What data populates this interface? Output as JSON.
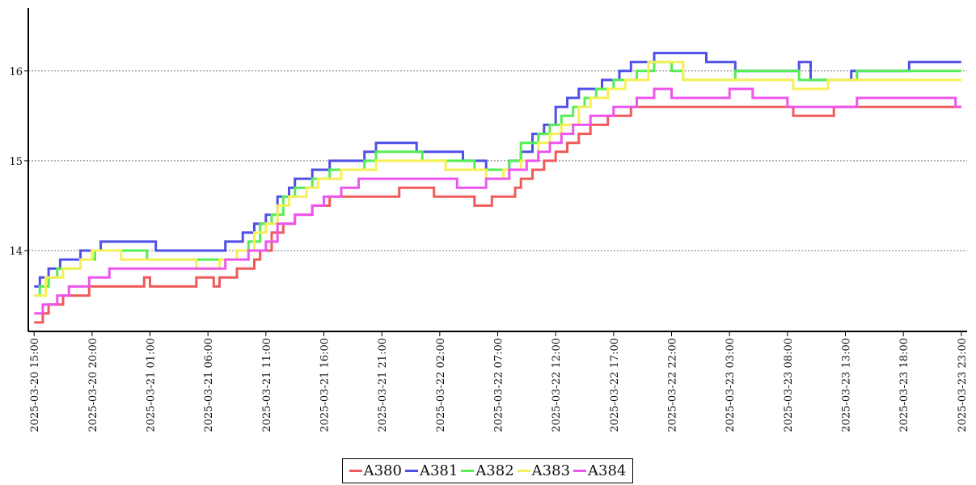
{
  "chart_data": {
    "type": "line",
    "step": true,
    "x_type": "datetime",
    "x_range": [
      "2025-03-20 14:30",
      "2025-03-23 23:30"
    ],
    "ylim": [
      13.1,
      16.7
    ],
    "y_ticks": [
      14,
      15,
      16
    ],
    "y_tick_labels": [
      "14",
      "15",
      "16"
    ],
    "x_ticks": [
      "2025-03-20 15:00",
      "2025-03-20 20:00",
      "2025-03-21 01:00",
      "2025-03-21 06:00",
      "2025-03-21 11:00",
      "2025-03-21 16:00",
      "2025-03-21 21:00",
      "2025-03-22 02:00",
      "2025-03-22 07:00",
      "2025-03-22 12:00",
      "2025-03-22 17:00",
      "2025-03-22 22:00",
      "2025-03-23 03:00",
      "2025-03-23 08:00",
      "2025-03-23 13:00",
      "2025-03-23 18:00",
      "2025-03-23 23:00"
    ],
    "x_tick_labels": [
      "2025-03-20  15:00",
      "2025-03-20  20:00",
      "2025-03-21  01:00",
      "2025-03-21  06:00",
      "2025-03-21  11:00",
      "2025-03-21  16:00",
      "2025-03-21  21:00",
      "2025-03-22  02:00",
      "2025-03-22  07:00",
      "2025-03-22  12:00",
      "2025-03-22  17:00",
      "2025-03-22  22:00",
      "2025-03-23  03:00",
      "2025-03-23  08:00",
      "2025-03-23  13:00",
      "2025-03-23  18:00",
      "2025-03-23  23:00"
    ],
    "grid": "horizontal dotted",
    "legend_position": "bottom-center",
    "series": [
      {
        "name": "A380",
        "color": "#f05a5a",
        "points": [
          [
            "2025-03-20 15:00",
            13.2
          ],
          [
            "2025-03-20 15:45",
            13.3
          ],
          [
            "2025-03-20 16:15",
            13.4
          ],
          [
            "2025-03-20 17:30",
            13.5
          ],
          [
            "2025-03-20 19:45",
            13.6
          ],
          [
            "2025-03-21 00:00",
            13.6
          ],
          [
            "2025-03-21 00:30",
            13.7
          ],
          [
            "2025-03-21 01:00",
            13.6
          ],
          [
            "2025-03-21 05:00",
            13.7
          ],
          [
            "2025-03-21 06:30",
            13.6
          ],
          [
            "2025-03-21 07:00",
            13.7
          ],
          [
            "2025-03-21 08:30",
            13.8
          ],
          [
            "2025-03-21 10:00",
            13.9
          ],
          [
            "2025-03-21 10:30",
            14.0
          ],
          [
            "2025-03-21 11:30",
            14.2
          ],
          [
            "2025-03-21 12:30",
            14.3
          ],
          [
            "2025-03-21 13:30",
            14.4
          ],
          [
            "2025-03-21 15:00",
            14.5
          ],
          [
            "2025-03-21 16:30",
            14.6
          ],
          [
            "2025-03-21 22:00",
            14.6
          ],
          [
            "2025-03-21 22:30",
            14.7
          ],
          [
            "2025-03-22 01:30",
            14.6
          ],
          [
            "2025-03-22 05:00",
            14.5
          ],
          [
            "2025-03-22 06:30",
            14.6
          ],
          [
            "2025-03-22 08:30",
            14.7
          ],
          [
            "2025-03-22 09:00",
            14.8
          ],
          [
            "2025-03-22 10:00",
            14.9
          ],
          [
            "2025-03-22 11:00",
            15.0
          ],
          [
            "2025-03-22 12:00",
            15.1
          ],
          [
            "2025-03-22 13:00",
            15.2
          ],
          [
            "2025-03-22 14:00",
            15.3
          ],
          [
            "2025-03-22 15:00",
            15.4
          ],
          [
            "2025-03-22 16:30",
            15.5
          ],
          [
            "2025-03-22 18:30",
            15.6
          ],
          [
            "2025-03-23 02:30",
            15.6
          ],
          [
            "2025-03-23 08:30",
            15.5
          ],
          [
            "2025-03-23 12:00",
            15.6
          ],
          [
            "2025-03-23 23:00",
            15.6
          ]
        ]
      },
      {
        "name": "A381",
        "color": "#5050e6",
        "points": [
          [
            "2025-03-20 15:00",
            13.6
          ],
          [
            "2025-03-20 15:30",
            13.7
          ],
          [
            "2025-03-20 16:15",
            13.8
          ],
          [
            "2025-03-20 17:15",
            13.9
          ],
          [
            "2025-03-20 19:00",
            14.0
          ],
          [
            "2025-03-20 20:45",
            14.1
          ],
          [
            "2025-03-21 00:30",
            14.1
          ],
          [
            "2025-03-21 01:30",
            14.0
          ],
          [
            "2025-03-21 07:30",
            14.1
          ],
          [
            "2025-03-21 09:00",
            14.2
          ],
          [
            "2025-03-21 10:00",
            14.3
          ],
          [
            "2025-03-21 11:00",
            14.4
          ],
          [
            "2025-03-21 12:00",
            14.6
          ],
          [
            "2025-03-21 13:00",
            14.7
          ],
          [
            "2025-03-21 13:30",
            14.8
          ],
          [
            "2025-03-21 15:00",
            14.9
          ],
          [
            "2025-03-21 16:30",
            15.0
          ],
          [
            "2025-03-21 19:30",
            15.1
          ],
          [
            "2025-03-21 20:30",
            15.2
          ],
          [
            "2025-03-21 23:30",
            15.2
          ],
          [
            "2025-03-22 00:00",
            15.1
          ],
          [
            "2025-03-22 04:00",
            15.0
          ],
          [
            "2025-03-22 06:00",
            14.9
          ],
          [
            "2025-03-22 07:00",
            14.9
          ],
          [
            "2025-03-22 08:00",
            15.0
          ],
          [
            "2025-03-22 09:00",
            15.1
          ],
          [
            "2025-03-22 10:00",
            15.3
          ],
          [
            "2025-03-22 11:00",
            15.4
          ],
          [
            "2025-03-22 12:00",
            15.6
          ],
          [
            "2025-03-22 13:00",
            15.7
          ],
          [
            "2025-03-22 14:00",
            15.8
          ],
          [
            "2025-03-22 16:00",
            15.9
          ],
          [
            "2025-03-22 17:30",
            16.0
          ],
          [
            "2025-03-22 18:30",
            16.1
          ],
          [
            "2025-03-22 20:30",
            16.2
          ],
          [
            "2025-03-23 00:30",
            16.2
          ],
          [
            "2025-03-23 01:00",
            16.1
          ],
          [
            "2025-03-23 03:30",
            16.0
          ],
          [
            "2025-03-23 09:00",
            16.1
          ],
          [
            "2025-03-23 10:00",
            15.9
          ],
          [
            "2025-03-23 13:30",
            16.0
          ],
          [
            "2025-03-23 18:30",
            16.1
          ],
          [
            "2025-03-23 23:00",
            16.1
          ]
        ]
      },
      {
        "name": "A382",
        "color": "#55ee55",
        "points": [
          [
            "2025-03-20 15:00",
            13.5
          ],
          [
            "2025-03-20 15:30",
            13.6
          ],
          [
            "2025-03-20 16:15",
            13.7
          ],
          [
            "2025-03-20 17:00",
            13.8
          ],
          [
            "2025-03-20 19:00",
            13.9
          ],
          [
            "2025-03-20 20:15",
            14.0
          ],
          [
            "2025-03-21 00:30",
            14.0
          ],
          [
            "2025-03-21 00:45",
            13.9
          ],
          [
            "2025-03-21 07:00",
            13.9
          ],
          [
            "2025-03-21 08:30",
            14.0
          ],
          [
            "2025-03-21 09:30",
            14.1
          ],
          [
            "2025-03-21 10:30",
            14.3
          ],
          [
            "2025-03-21 11:30",
            14.4
          ],
          [
            "2025-03-21 12:30",
            14.6
          ],
          [
            "2025-03-21 13:30",
            14.7
          ],
          [
            "2025-03-21 15:00",
            14.8
          ],
          [
            "2025-03-21 16:30",
            14.9
          ],
          [
            "2025-03-21 19:30",
            15.0
          ],
          [
            "2025-03-21 20:30",
            15.1
          ],
          [
            "2025-03-22 00:00",
            15.1
          ],
          [
            "2025-03-22 00:30",
            15.0
          ],
          [
            "2025-03-22 05:00",
            14.9
          ],
          [
            "2025-03-22 07:00",
            14.9
          ],
          [
            "2025-03-22 08:00",
            15.0
          ],
          [
            "2025-03-22 09:00",
            15.2
          ],
          [
            "2025-03-22 10:30",
            15.3
          ],
          [
            "2025-03-22 11:30",
            15.4
          ],
          [
            "2025-03-22 12:30",
            15.5
          ],
          [
            "2025-03-22 13:30",
            15.6
          ],
          [
            "2025-03-22 14:30",
            15.7
          ],
          [
            "2025-03-22 15:30",
            15.8
          ],
          [
            "2025-03-22 17:00",
            15.9
          ],
          [
            "2025-03-22 19:00",
            16.0
          ],
          [
            "2025-03-22 20:30",
            16.1
          ],
          [
            "2025-03-22 22:00",
            16.0
          ],
          [
            "2025-03-22 23:00",
            15.9
          ],
          [
            "2025-03-23 03:30",
            16.0
          ],
          [
            "2025-03-23 09:00",
            15.9
          ],
          [
            "2025-03-23 14:00",
            16.0
          ],
          [
            "2025-03-23 23:00",
            16.0
          ]
        ]
      },
      {
        "name": "A383",
        "color": "#f5f055",
        "points": [
          [
            "2025-03-20 15:00",
            13.5
          ],
          [
            "2025-03-20 16:00",
            13.7
          ],
          [
            "2025-03-20 17:30",
            13.8
          ],
          [
            "2025-03-20 19:00",
            13.9
          ],
          [
            "2025-03-20 20:00",
            14.0
          ],
          [
            "2025-03-20 22:30",
            13.9
          ],
          [
            "2025-03-21 05:00",
            13.8
          ],
          [
            "2025-03-21 07:00",
            13.9
          ],
          [
            "2025-03-21 08:30",
            14.0
          ],
          [
            "2025-03-21 10:00",
            14.2
          ],
          [
            "2025-03-21 11:00",
            14.3
          ],
          [
            "2025-03-21 12:00",
            14.5
          ],
          [
            "2025-03-21 13:00",
            14.6
          ],
          [
            "2025-03-21 14:30",
            14.7
          ],
          [
            "2025-03-21 15:30",
            14.8
          ],
          [
            "2025-03-21 17:30",
            14.9
          ],
          [
            "2025-03-21 20:30",
            15.0
          ],
          [
            "2025-03-22 01:00",
            15.0
          ],
          [
            "2025-03-22 02:30",
            14.9
          ],
          [
            "2025-03-22 06:00",
            14.8
          ],
          [
            "2025-03-22 07:30",
            14.9
          ],
          [
            "2025-03-22 09:00",
            15.0
          ],
          [
            "2025-03-22 10:30",
            15.2
          ],
          [
            "2025-03-22 11:30",
            15.3
          ],
          [
            "2025-03-22 12:30",
            15.4
          ],
          [
            "2025-03-22 14:00",
            15.6
          ],
          [
            "2025-03-22 15:00",
            15.7
          ],
          [
            "2025-03-22 16:30",
            15.8
          ],
          [
            "2025-03-22 18:00",
            15.9
          ],
          [
            "2025-03-22 20:00",
            16.1
          ],
          [
            "2025-03-22 23:00",
            15.9
          ],
          [
            "2025-03-23 03:00",
            15.9
          ],
          [
            "2025-03-23 08:30",
            15.8
          ],
          [
            "2025-03-23 11:30",
            15.9
          ],
          [
            "2025-03-23 20:00",
            15.9
          ],
          [
            "2025-03-23 23:00",
            15.9
          ]
        ]
      },
      {
        "name": "A384",
        "color": "#ee55ee",
        "points": [
          [
            "2025-03-20 15:00",
            13.3
          ],
          [
            "2025-03-20 15:45",
            13.4
          ],
          [
            "2025-03-20 17:00",
            13.5
          ],
          [
            "2025-03-20 18:00",
            13.6
          ],
          [
            "2025-03-20 19:45",
            13.7
          ],
          [
            "2025-03-20 21:30",
            13.8
          ],
          [
            "2025-03-21 06:00",
            13.8
          ],
          [
            "2025-03-21 07:30",
            13.9
          ],
          [
            "2025-03-21 09:30",
            14.0
          ],
          [
            "2025-03-21 11:00",
            14.1
          ],
          [
            "2025-03-21 12:00",
            14.3
          ],
          [
            "2025-03-21 13:30",
            14.4
          ],
          [
            "2025-03-21 15:00",
            14.5
          ],
          [
            "2025-03-21 16:00",
            14.6
          ],
          [
            "2025-03-21 17:30",
            14.7
          ],
          [
            "2025-03-21 19:00",
            14.8
          ],
          [
            "2025-03-22 02:00",
            14.8
          ],
          [
            "2025-03-22 03:30",
            14.7
          ],
          [
            "2025-03-22 06:00",
            14.8
          ],
          [
            "2025-03-22 08:00",
            14.9
          ],
          [
            "2025-03-22 09:30",
            15.0
          ],
          [
            "2025-03-22 10:30",
            15.1
          ],
          [
            "2025-03-22 11:30",
            15.2
          ],
          [
            "2025-03-22 12:30",
            15.3
          ],
          [
            "2025-03-22 13:30",
            15.4
          ],
          [
            "2025-03-22 15:00",
            15.5
          ],
          [
            "2025-03-22 17:00",
            15.6
          ],
          [
            "2025-03-22 19:00",
            15.7
          ],
          [
            "2025-03-22 20:30",
            15.8
          ],
          [
            "2025-03-22 22:00",
            15.7
          ],
          [
            "2025-03-23 02:00",
            15.7
          ],
          [
            "2025-03-23 03:00",
            15.8
          ],
          [
            "2025-03-23 05:00",
            15.7
          ],
          [
            "2025-03-23 08:00",
            15.6
          ],
          [
            "2025-03-23 14:00",
            15.7
          ],
          [
            "2025-03-23 22:30",
            15.6
          ],
          [
            "2025-03-23 23:00",
            15.6
          ]
        ]
      }
    ]
  }
}
